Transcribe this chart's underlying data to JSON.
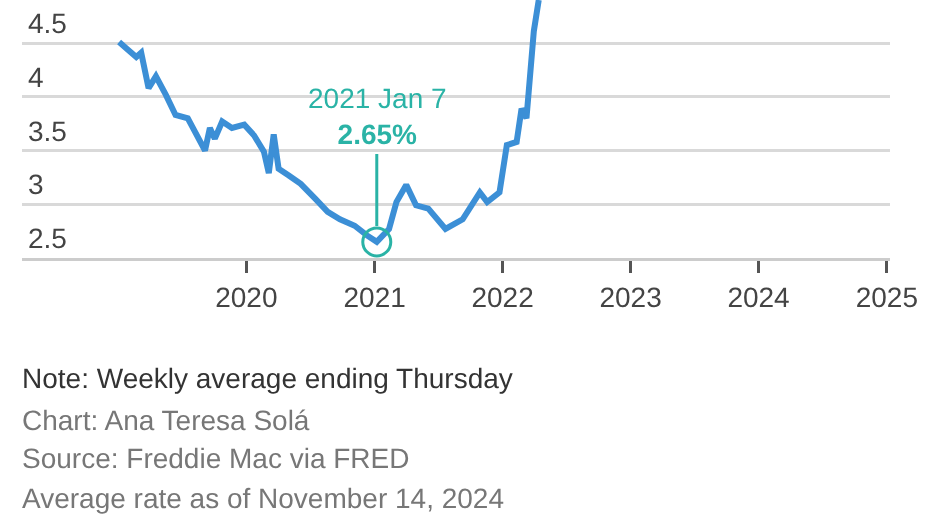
{
  "chart_data": {
    "type": "line",
    "x": [
      "2019-01-03",
      "2019-01-24",
      "2019-02-21",
      "2019-03-07",
      "2019-03-28",
      "2019-04-18",
      "2019-05-16",
      "2019-06-13",
      "2019-07-18",
      "2019-08-08",
      "2019-09-05",
      "2019-09-19",
      "2019-10-03",
      "2019-10-24",
      "2019-11-21",
      "2019-12-26",
      "2020-01-23",
      "2020-02-20",
      "2020-03-05",
      "2020-03-19",
      "2020-04-02",
      "2020-04-30",
      "2020-06-04",
      "2020-07-16",
      "2020-08-20",
      "2020-09-24",
      "2020-11-05",
      "2020-12-10",
      "2021-01-07",
      "2021-02-11",
      "2021-03-04",
      "2021-04-01",
      "2021-04-29",
      "2021-06-03",
      "2021-07-22",
      "2021-09-09",
      "2021-10-28",
      "2021-11-18",
      "2021-12-23",
      "2022-01-13",
      "2022-02-10",
      "2022-02-24",
      "2022-03-10",
      "2022-03-31",
      "2022-04-14"
    ],
    "series": [
      {
        "color": "#3c8fd6",
        "values": [
          4.51,
          4.45,
          4.37,
          4.41,
          4.08,
          4.19,
          4.02,
          3.83,
          3.8,
          3.67,
          3.5,
          3.71,
          3.61,
          3.77,
          3.71,
          3.74,
          3.64,
          3.49,
          3.29,
          3.65,
          3.33,
          3.27,
          3.19,
          3.05,
          2.93,
          2.86,
          2.8,
          2.71,
          2.65,
          2.77,
          3.02,
          3.18,
          2.99,
          2.96,
          2.77,
          2.86,
          3.11,
          3.02,
          3.11,
          3.55,
          3.58,
          3.89,
          3.8,
          4.61,
          4.9
        ]
      }
    ],
    "xlim": [
      "2018-04-01",
      "2025-01-10"
    ],
    "xticks": [
      {
        "value": "2020-01-01",
        "label": "2020"
      },
      {
        "value": "2021-01-01",
        "label": "2021"
      },
      {
        "value": "2022-01-01",
        "label": "2022"
      },
      {
        "value": "2023-01-01",
        "label": "2023"
      },
      {
        "value": "2024-01-01",
        "label": "2024"
      },
      {
        "value": "2025-01-01",
        "label": "2025"
      }
    ],
    "ylim": [
      2.5,
      4.9
    ],
    "yticks": [
      2.5,
      3,
      3.5,
      4,
      4.5
    ],
    "grid": "y",
    "marker": "none",
    "line_style": "solid",
    "annotations": [
      {
        "text": "2021 Jan 7\n2.65%",
        "x": "2021-01-07",
        "y": 2.65
      },
      "Note: Weekly average ending Thursday",
      "Chart: Ana Teresa Solá",
      "Source: Freddie Mac via FRED",
      "Average rate as of November 14, 2024"
    ]
  }
}
